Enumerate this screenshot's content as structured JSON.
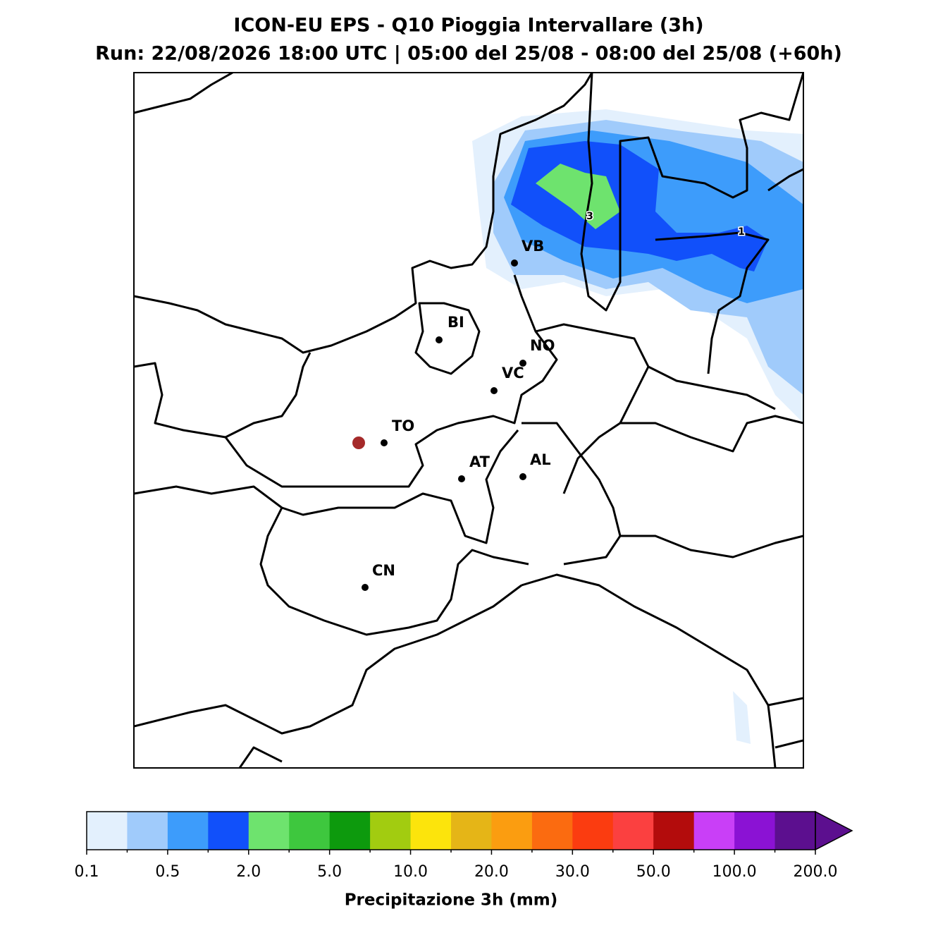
{
  "title": [
    "ICON-EU EPS - Q10 Pioggia Intervallare (3h)",
    "Run: 22/08/2026 18:00 UTC | 05:00 del 25/08 - 08:00 del 25/08 (+60h)"
  ],
  "cities": [
    {
      "label": "VB"
    },
    {
      "label": "BI"
    },
    {
      "label": "NO"
    },
    {
      "label": "VC"
    },
    {
      "label": "TO"
    },
    {
      "label": "AT"
    },
    {
      "label": "AL"
    },
    {
      "label": "CN"
    }
  ],
  "contour_labels": [
    "3",
    "1"
  ],
  "colorbar": {
    "colors": [
      "#e3f0fd",
      "#a0cbfb",
      "#3d9cfb",
      "#1150fa",
      "#6ee36e",
      "#3ec73e",
      "#0d9a0d",
      "#a2cc10",
      "#fce40c",
      "#e5b517",
      "#fb9d10",
      "#fb6b10",
      "#fb3c10",
      "#fb4040",
      "#b30c0c",
      "#c93ff7",
      "#8b12d4",
      "#5c0f8f"
    ],
    "ticks": [
      "0.1",
      "0.5",
      "2.0",
      "5.0",
      "10.0",
      "20.0",
      "30.0",
      "50.0",
      "100.0",
      "200.0"
    ],
    "label": "Precipitazione 3h (mm)"
  }
}
